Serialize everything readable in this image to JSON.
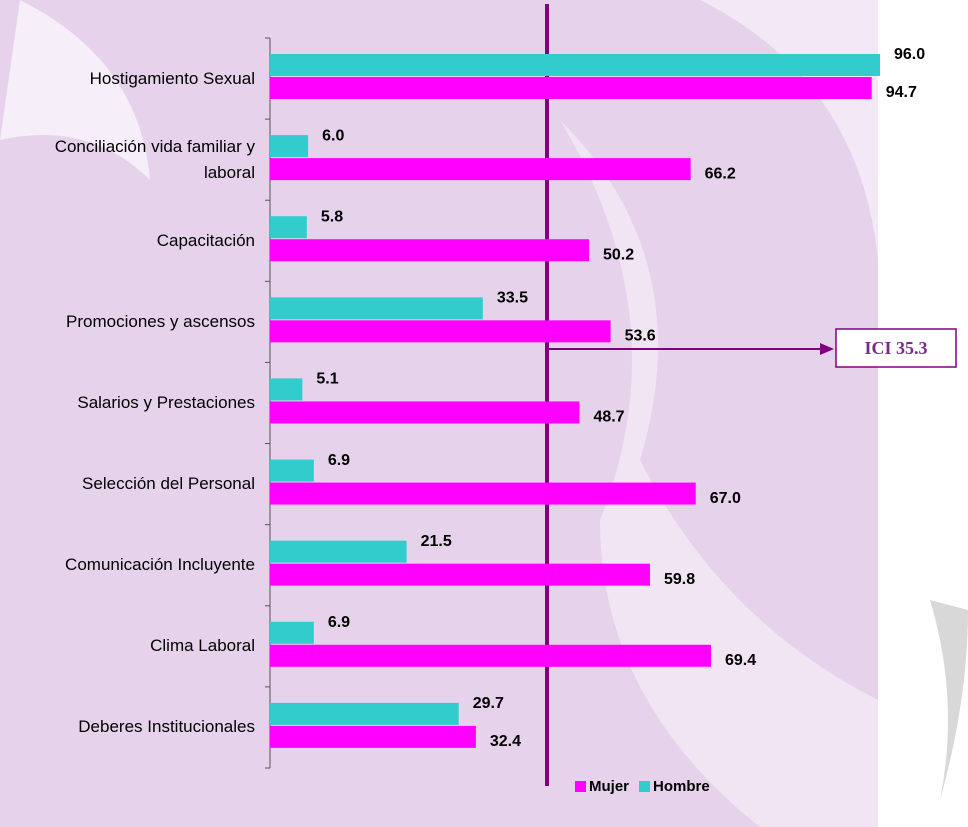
{
  "chart_data": {
    "type": "barh",
    "categories": [
      "Hostigamiento Sexual",
      "Conciliación vida familiar y laboral",
      "Capacitación",
      "Promociones y ascensos",
      "Salarios y Prestaciones",
      "Selección del Personal",
      "Comunicación Incluyente",
      "Clima Laboral",
      "Deberes Institucionales"
    ],
    "series": [
      {
        "name": "Hombre",
        "color": "#33cccc",
        "values": [
          96.0,
          6.0,
          5.8,
          33.5,
          5.1,
          6.9,
          21.5,
          6.9,
          29.7
        ],
        "value_labels": [
          "96.0",
          "6.0",
          "5.8",
          "33.5",
          "5.1",
          "6.9",
          "21.5",
          "6.9",
          "29.7"
        ]
      },
      {
        "name": "Mujer",
        "color": "#ff00ff",
        "values": [
          94.7,
          66.2,
          50.2,
          53.6,
          48.7,
          67.0,
          59.8,
          69.4,
          32.4
        ],
        "value_labels": [
          "94.7",
          "66.2",
          "50.2",
          "53.6",
          "48.7",
          "67.0",
          "59.8",
          "69.4",
          "32.4"
        ]
      }
    ],
    "xlim": [
      0,
      100
    ],
    "legend_order": [
      "Mujer",
      "Hombre"
    ],
    "annotation": "ICI 35.3"
  }
}
